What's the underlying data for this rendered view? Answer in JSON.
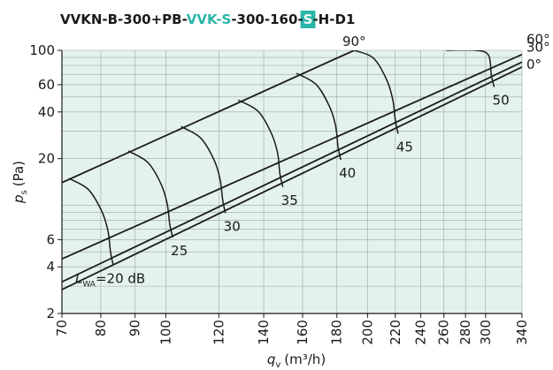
{
  "chart_data": {
    "type": "line",
    "title_parts": [
      {
        "text": "VVKN-B-300+PB-",
        "color": "#1a1a1a"
      },
      {
        "text": "VVK-S",
        "color": "#2bb5a8"
      },
      {
        "text": "-300-160-",
        "color": "#1a1a1a"
      },
      {
        "text": "S",
        "color": "#ffffff",
        "box": "#2bb5a8"
      },
      {
        "text": "-H-D1",
        "color": "#1a1a1a"
      }
    ],
    "y_label": {
      "symbol": "p",
      "subscript": "s",
      "unit": "(Pa)"
    },
    "x_label": {
      "symbol": "q",
      "subscript": "v",
      "unit": "(m³/h)"
    },
    "log_x": true,
    "log_y": true,
    "xlim": [
      70,
      340
    ],
    "ylim": [
      2,
      100
    ],
    "xticks": [
      70,
      80,
      90,
      100,
      120,
      140,
      160,
      180,
      200,
      220,
      240,
      260,
      280,
      300,
      340
    ],
    "yticks": [
      2,
      4,
      6,
      20,
      40,
      60,
      100
    ],
    "y_minor_grid": [
      3,
      5,
      7,
      8,
      9,
      10,
      30,
      50,
      70,
      80,
      90
    ],
    "grid": true,
    "background": "#e4f2ee",
    "series": [
      {
        "name": "90°",
        "color": "#1a1a1a",
        "x": [
          70,
          191
        ],
        "values": [
          14,
          100
        ]
      },
      {
        "name": "60°",
        "color": "#1a1a1a",
        "x": [
          70,
          340
        ],
        "values": [
          4.5,
          94
        ]
      },
      {
        "name": "30°",
        "color": "#1a1a1a",
        "x": [
          70,
          340
        ],
        "values": [
          3.2,
          84
        ]
      },
      {
        "name": "0°",
        "color": "#1a1a1a",
        "x": [
          70,
          340
        ],
        "values": [
          2.85,
          78
        ]
      }
    ],
    "lwa_label": {
      "symbol": "L",
      "subscript": "WA",
      "text": "=20 dB"
    },
    "contours": [
      {
        "x": [
          71.7,
          76.7,
          80.3,
          82,
          82.7,
          83.5
        ],
        "values": [
          14.9,
          12.6,
          9.1,
          6.8,
          5,
          4.1
        ]
      },
      {
        "label": "25",
        "x": [
          87.9,
          94,
          98.4,
          100.5,
          101.4,
          102.4
        ],
        "values": [
          22.4,
          18.9,
          13.7,
          10.2,
          7.5,
          6.2
        ]
      },
      {
        "label": "30",
        "x": [
          105.4,
          112.7,
          118,
          120.5,
          121.6,
          122.7
        ],
        "values": [
          32.2,
          27.2,
          19.7,
          14.7,
          10.8,
          8.9
        ]
      },
      {
        "label": "35",
        "x": [
          128.3,
          137.3,
          143.7,
          146.8,
          148,
          149.5
        ],
        "values": [
          47.7,
          40.4,
          29.2,
          21.8,
          16,
          13.1
        ]
      },
      {
        "label": "40",
        "x": [
          156.7,
          167.6,
          175.5,
          179.2,
          180.7,
          182.4
        ],
        "values": [
          71.1,
          60.2,
          43.4,
          32.5,
          23.9,
          19.6
        ]
      },
      {
        "label": "45",
        "x": [
          191,
          204,
          213.6,
          218.1,
          220,
          222.1
        ],
        "values": [
          100,
          89.2,
          64.4,
          48.1,
          35.4,
          29
        ]
      },
      {
        "label": "50",
        "x": [
          262,
          290,
          303,
          306,
          309
        ],
        "values": [
          100,
          100,
          93,
          69,
          58
        ]
      }
    ]
  }
}
